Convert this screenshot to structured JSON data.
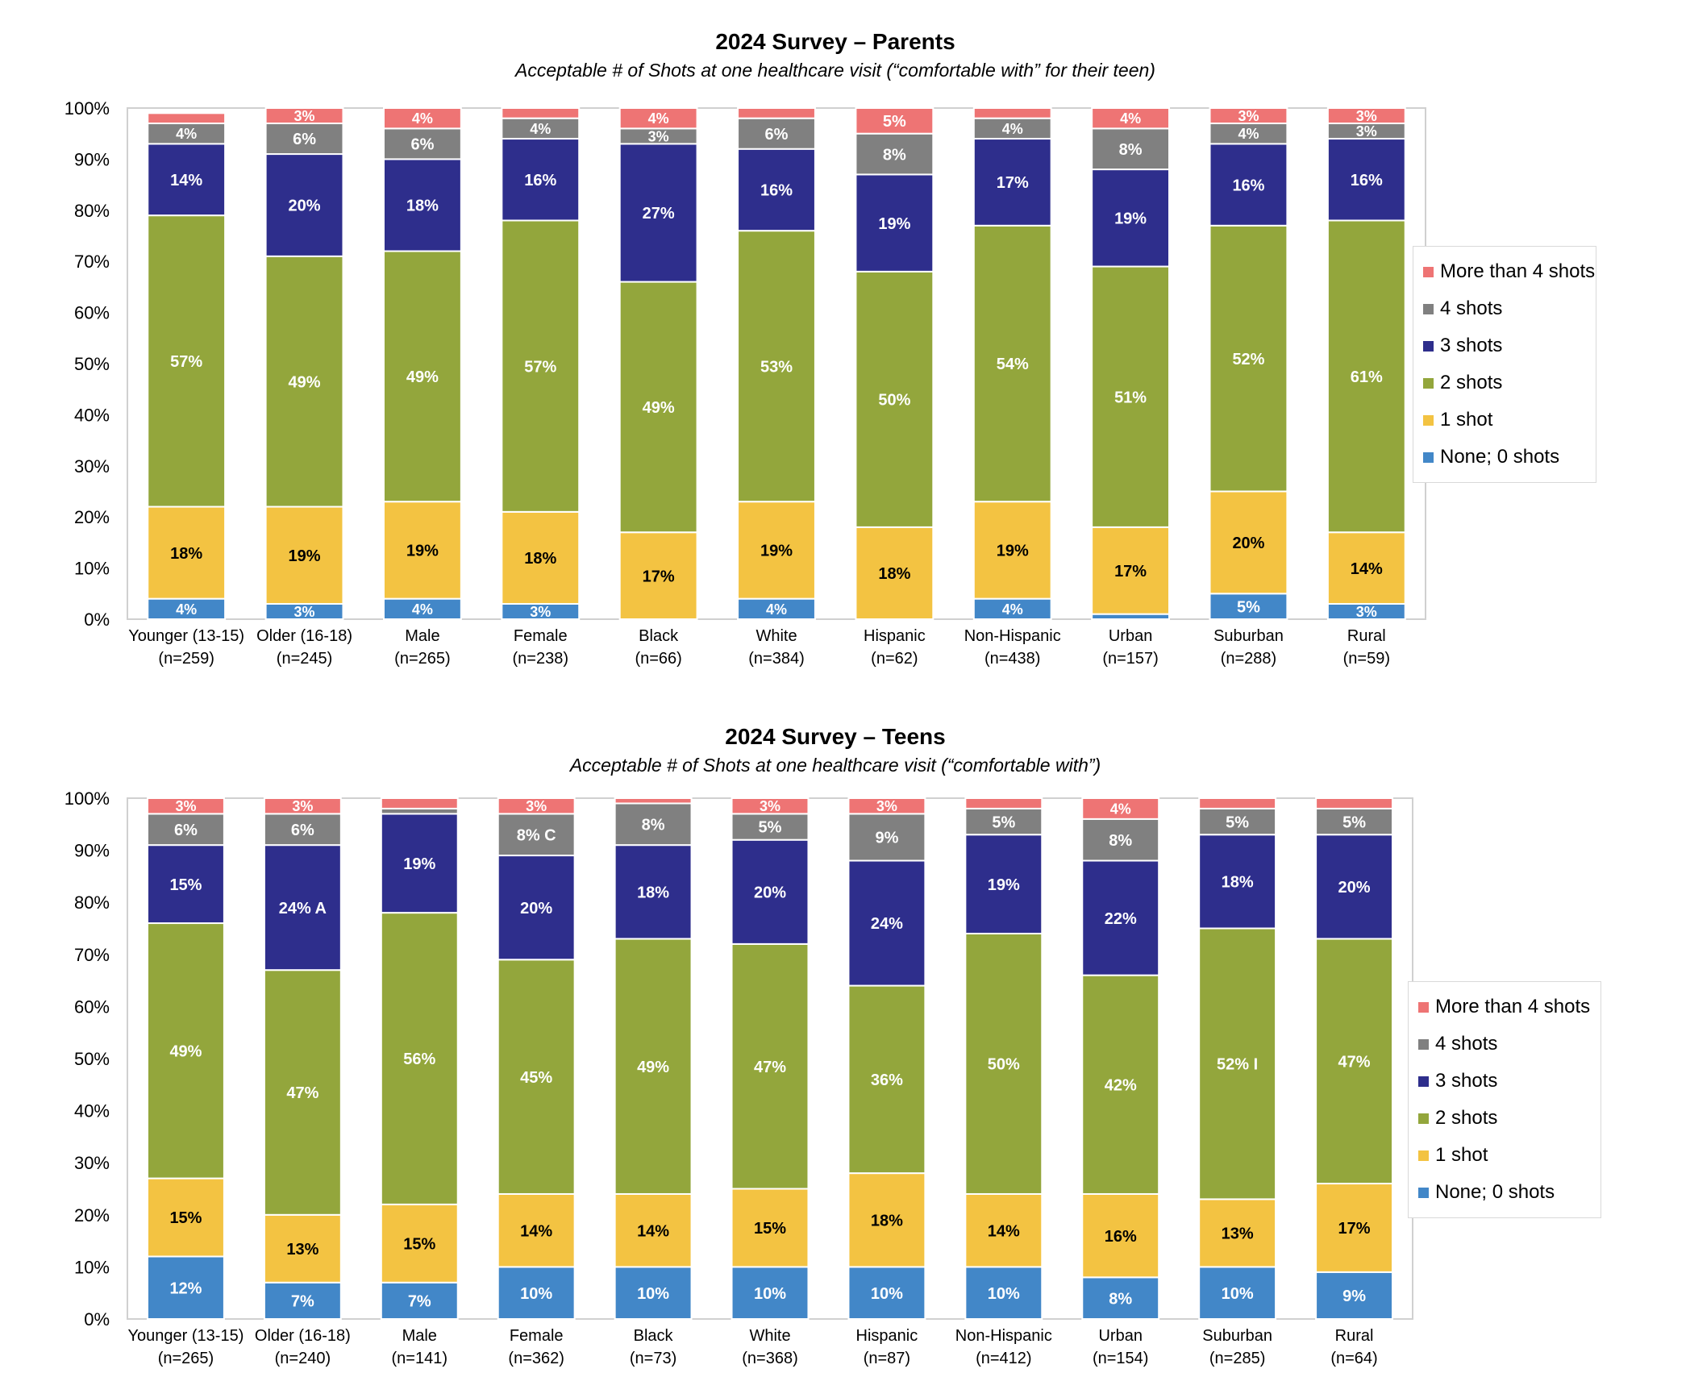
{
  "colors": {
    "None; 0 shots": "#4287C8",
    "1 shot": "#F3C342",
    "2 shots": "#93A63C",
    "3 shots": "#2E2E8C",
    "4 shots": "#808080",
    "More than 4 shots": "#EE7474"
  },
  "chart_data": [
    {
      "type": "bar",
      "stacked": true,
      "title": "2024 Survey – Parents",
      "subtitle": "Acceptable # of Shots at one healthcare visit (“comfortable with” for their teen)",
      "categories": [
        "Younger (13-15)",
        "Older (16-18)",
        "Male",
        "Female",
        "Black",
        "White",
        "Hispanic",
        "Non-Hispanic",
        "Urban",
        "Suburban",
        "Rural"
      ],
      "category_n": [
        "(n=259)",
        "(n=245)",
        "(n=265)",
        "(n=238)",
        "(n=66)",
        "(n=384)",
        "(n=62)",
        "(n=438)",
        "(n=157)",
        "(n=288)",
        "(n=59)"
      ],
      "ylim": [
        0,
        100
      ],
      "yticks": [
        "0%",
        "10%",
        "20%",
        "30%",
        "40%",
        "50%",
        "60%",
        "70%",
        "80%",
        "90%",
        "100%"
      ],
      "legend": "right",
      "series": [
        {
          "name": "None; 0 shots",
          "values": [
            4,
            3,
            4,
            3,
            0,
            4,
            0,
            4,
            1,
            5,
            3
          ],
          "labels": [
            "4%",
            "3%",
            "4%",
            "3%",
            "",
            "4%",
            "",
            "4%",
            "",
            "5%",
            "3%"
          ]
        },
        {
          "name": "1 shot",
          "values": [
            18,
            19,
            19,
            18,
            17,
            19,
            18,
            19,
            17,
            20,
            14
          ],
          "labels": [
            "18%",
            "19%",
            "19%",
            "18%",
            "17%",
            "19%",
            "18%",
            "19%",
            "17%",
            "20%",
            "14%"
          ]
        },
        {
          "name": "2 shots",
          "values": [
            57,
            49,
            49,
            57,
            49,
            53,
            50,
            54,
            51,
            52,
            61
          ],
          "labels": [
            "57%",
            "49%",
            "49%",
            "57%",
            "49%",
            "53%",
            "50%",
            "54%",
            "51%",
            "52%",
            "61%"
          ]
        },
        {
          "name": "3 shots",
          "values": [
            14,
            20,
            18,
            16,
            27,
            16,
            19,
            17,
            19,
            16,
            16
          ],
          "labels": [
            "14%",
            "20%",
            "18%",
            "16%",
            "27%",
            "16%",
            "19%",
            "17%",
            "19%",
            "16%",
            "16%"
          ]
        },
        {
          "name": "4 shots",
          "values": [
            4,
            6,
            6,
            4,
            3,
            6,
            8,
            4,
            8,
            4,
            3
          ],
          "labels": [
            "4%",
            "6%",
            "6%",
            "4%",
            "3%",
            "6%",
            "8%",
            "4%",
            "8%",
            "4%",
            "3%"
          ]
        },
        {
          "name": "More than 4 shots",
          "values": [
            2,
            3,
            4,
            2,
            4,
            2,
            5,
            2,
            4,
            3,
            3
          ],
          "labels": [
            "",
            "3%",
            "4%",
            "",
            "4%",
            "",
            "5%",
            "",
            "4%",
            "3%",
            "3%"
          ]
        }
      ]
    },
    {
      "type": "bar",
      "stacked": true,
      "title": "2024 Survey – Teens",
      "subtitle": "Acceptable # of Shots at one healthcare visit (“comfortable with”)",
      "categories": [
        "Younger (13-15)",
        "Older (16-18)",
        "Male",
        "Female",
        "Black",
        "White",
        "Hispanic",
        "Non-Hispanic",
        "Urban",
        "Suburban",
        "Rural"
      ],
      "category_n": [
        "(n=265)",
        "(n=240)",
        "(n=141)",
        "(n=362)",
        "(n=73)",
        "(n=368)",
        "(n=87)",
        "(n=412)",
        "(n=154)",
        "(n=285)",
        "(n=64)"
      ],
      "ylim": [
        0,
        100
      ],
      "yticks": [
        "0%",
        "10%",
        "20%",
        "30%",
        "40%",
        "50%",
        "60%",
        "70%",
        "80%",
        "90%",
        "100%"
      ],
      "legend": "right",
      "series": [
        {
          "name": "None; 0 shots",
          "values": [
            12,
            7,
            7,
            10,
            10,
            10,
            10,
            10,
            8,
            10,
            9
          ],
          "labels": [
            "12%",
            "7%",
            "7%",
            "10%",
            "10%",
            "10%",
            "10%",
            "10%",
            "8%",
            "10%",
            "9%"
          ]
        },
        {
          "name": "1 shot",
          "values": [
            15,
            13,
            15,
            14,
            14,
            15,
            18,
            14,
            16,
            13,
            17
          ],
          "labels": [
            "15%",
            "13%",
            "15%",
            "14%",
            "14%",
            "15%",
            "18%",
            "14%",
            "16%",
            "13%",
            "17%"
          ]
        },
        {
          "name": "2 shots",
          "values": [
            49,
            47,
            56,
            45,
            49,
            47,
            36,
            50,
            42,
            52,
            47
          ],
          "labels": [
            "49%",
            "47%",
            "56%",
            "45%",
            "49%",
            "47%",
            "36%",
            "50%",
            "42%",
            "52% I",
            "47%"
          ]
        },
        {
          "name": "3 shots",
          "values": [
            15,
            24,
            19,
            20,
            18,
            20,
            24,
            19,
            22,
            18,
            20
          ],
          "labels": [
            "15%",
            "24% A",
            "19%",
            "20%",
            "18%",
            "20%",
            "24%",
            "19%",
            "22%",
            "18%",
            "20%"
          ]
        },
        {
          "name": "4 shots",
          "values": [
            6,
            6,
            1,
            8,
            8,
            5,
            9,
            5,
            8,
            5,
            5
          ],
          "labels": [
            "6%",
            "6%",
            "",
            "8% C",
            "8%",
            "5%",
            "9%",
            "5%",
            "8%",
            "5%",
            "5%"
          ]
        },
        {
          "name": "More than 4 shots",
          "values": [
            3,
            3,
            2,
            3,
            1,
            3,
            3,
            2,
            4,
            2,
            2
          ],
          "labels": [
            "3%",
            "3%",
            "",
            "3%",
            "",
            "3%",
            "3%",
            "",
            "4%",
            "",
            ""
          ]
        }
      ]
    }
  ]
}
